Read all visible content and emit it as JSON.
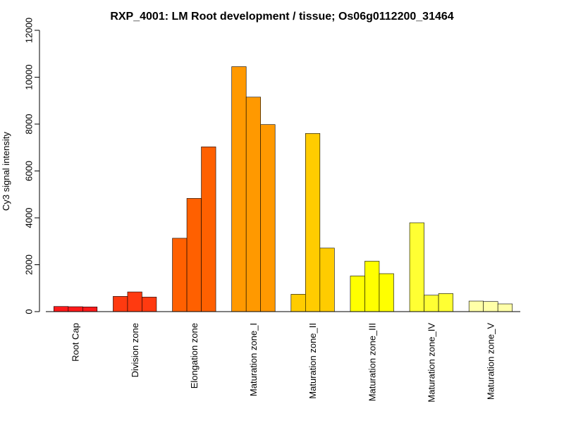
{
  "chart_data": {
    "type": "bar",
    "title": "RXP_4001: LM Root development / tissue; Os06g0112200_31464",
    "xlabel": "",
    "ylabel": "Cy3 signal intensity",
    "ylim": [
      0,
      12000
    ],
    "yticks": [
      0,
      2000,
      4000,
      6000,
      8000,
      10000,
      12000
    ],
    "grid": false,
    "categories": [
      {
        "label": "Root Cap",
        "color": "#ff1a1a",
        "values": [
          220,
          210,
          200
        ]
      },
      {
        "label": "Division zone",
        "color": "#ff3a10",
        "values": [
          650,
          840,
          620
        ]
      },
      {
        "label": "Elongation zone",
        "color": "#ff6000",
        "values": [
          3130,
          4830,
          7030
        ]
      },
      {
        "label": "Maturation zone_I",
        "color": "#ff9900",
        "values": [
          10450,
          9150,
          7980
        ]
      },
      {
        "label": "Maturation zone_II",
        "color": "#ffcc00",
        "values": [
          740,
          7600,
          2710
        ]
      },
      {
        "label": "Maturation zone_III",
        "color": "#ffff00",
        "values": [
          1520,
          2150,
          1620
        ]
      },
      {
        "label": "Maturation zone_IV",
        "color": "#ffff33",
        "values": [
          3790,
          700,
          770
        ]
      },
      {
        "label": "Maturation zone_V",
        "color": "#ffffa8",
        "values": [
          450,
          430,
          330
        ]
      }
    ]
  }
}
